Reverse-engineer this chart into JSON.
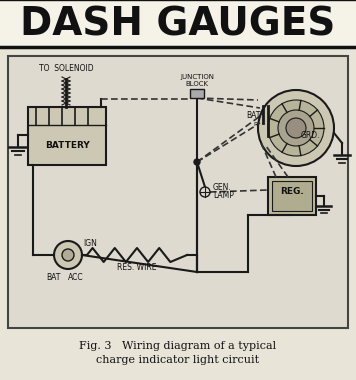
{
  "title": "DASH GAUGES",
  "caption_line1": "Fig. 3   Wiring diagram of a typical",
  "caption_line2": "charge indicator light circuit",
  "bg_color": "#e8e4d8",
  "diagram_bg": "#dedad0",
  "header_bg": "#f0ece0",
  "header_text_color": "#111111",
  "border_color": "#555555",
  "line_color": "#1a1a1a",
  "dashed_color": "#333333",
  "caption_color": "#111111"
}
